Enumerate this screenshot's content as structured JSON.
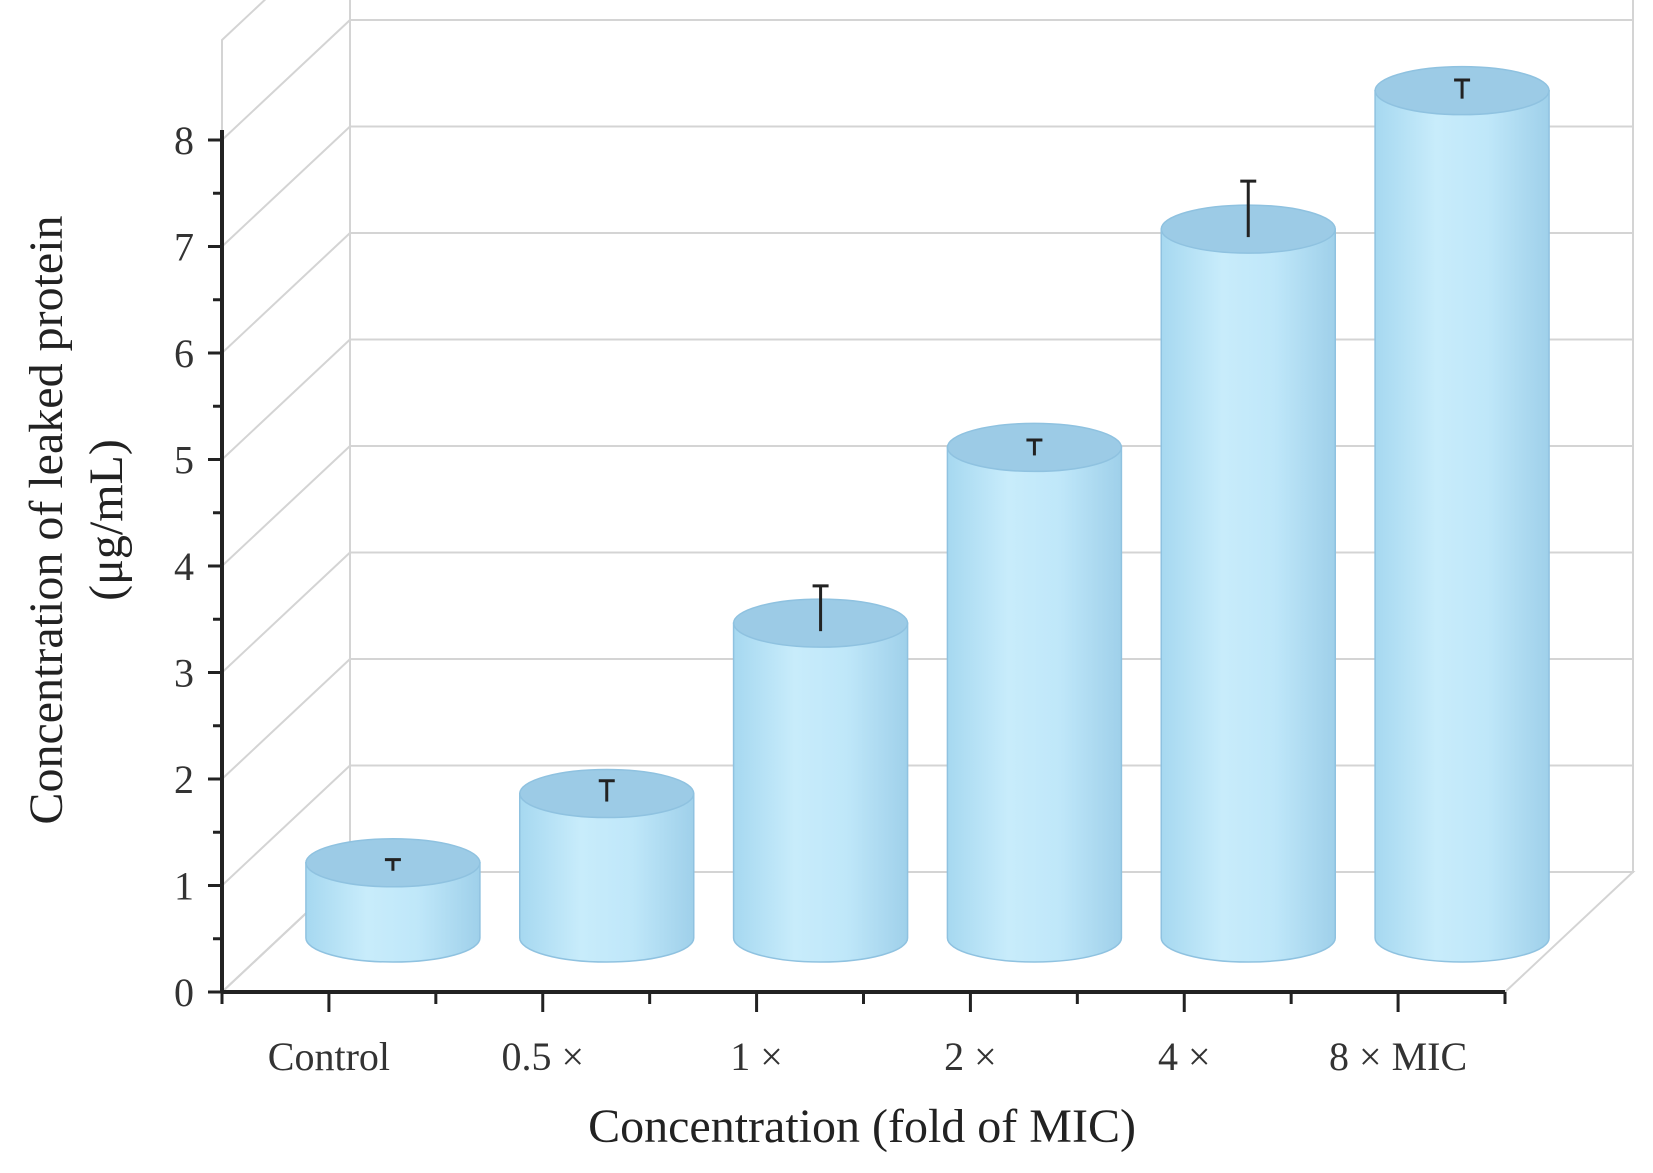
{
  "chart_data": {
    "type": "bar",
    "style": "3d-cylinder",
    "title": "",
    "categories": [
      "Control",
      "0.5 ×",
      "1 ×",
      "2 ×",
      "4 ×",
      "8 × MIC"
    ],
    "series": [
      {
        "name": "Concentration of leaked protein",
        "values": [
          0.65,
          1.3,
          2.9,
          4.55,
          6.6,
          7.9
        ],
        "errors": [
          0.03,
          0.12,
          0.35,
          0.07,
          0.45,
          0.1
        ]
      }
    ],
    "xlabel": "Concentration (fold of MIC)",
    "ylabel_line1": "Concentration of leaked protein",
    "ylabel_line2": "(μg/mL)",
    "ylim": [
      0,
      8
    ],
    "yticks": [
      "0",
      "1",
      "2",
      "3",
      "4",
      "5",
      "6",
      "7",
      "8"
    ],
    "grid": true,
    "legend": "none",
    "colors": {
      "bar_body": "#b5e0f5",
      "bar_top": "#9ccbe6",
      "bar_edge": "#8fc2e0",
      "error_bar": "#222222",
      "grid": "#d4d4d4",
      "axis": "#222222"
    }
  }
}
